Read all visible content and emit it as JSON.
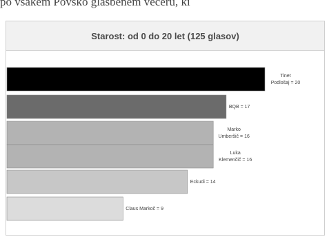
{
  "header_text": "po vsakem Povsko glasbenem večeru, ki",
  "chart_data": {
    "type": "bar",
    "orientation": "horizontal",
    "title": "Starost: od 0 do 20 let (125 glasov)",
    "categories": [
      "Tinet Podlošaj",
      "BQB",
      "Marko Umberšič",
      "Luka Klemenčič",
      "Eckudi",
      "Claus Markoč"
    ],
    "values": [
      20,
      17,
      16,
      16,
      14,
      9
    ],
    "labels": [
      [
        "Tinet",
        "Podlošaj = 20"
      ],
      [
        "BQB = 17"
      ],
      [
        "Marko",
        "Umberšič = 16"
      ],
      [
        "Luka",
        "Klemenčič = 16"
      ],
      [
        "Eckudi = 14"
      ],
      [
        "Claus Markoč = 9"
      ]
    ],
    "colors": [
      "#000000",
      "#6b6b6b",
      "#b3b3b3",
      "#b3b3b3",
      "#c7c7c7",
      "#dcdcdc"
    ],
    "xlim": [
      0,
      20
    ],
    "grid": false,
    "legend": "none"
  }
}
